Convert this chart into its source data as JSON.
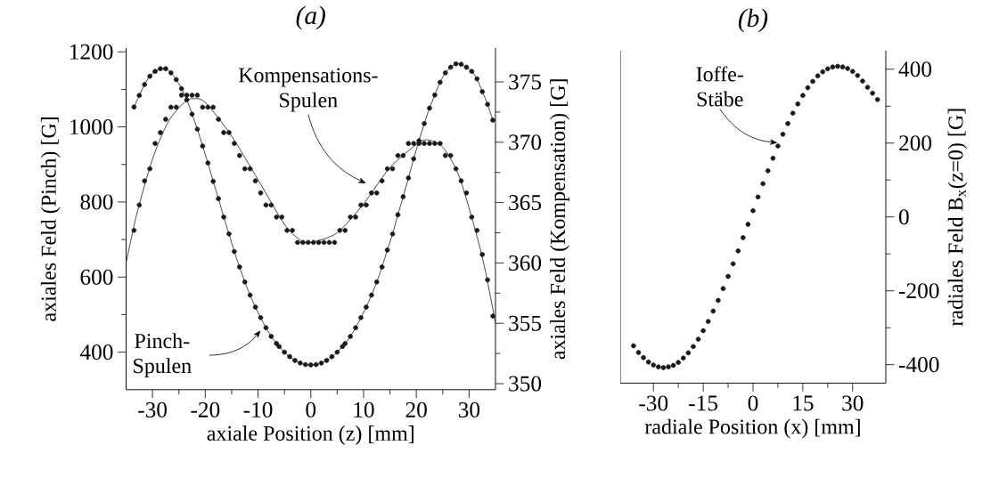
{
  "chart_data": [
    {
      "type": "line",
      "title": "(a)",
      "xlabel": "axiale Position (z) [mm]",
      "ylabel": "axiales Feld (Pinch) [G]",
      "y2label": "axiales Feld (Kompensation) [G]",
      "xlim": [
        -35,
        35
      ],
      "xticks": [
        -30,
        -20,
        -10,
        0,
        10,
        20,
        30
      ],
      "ylim": [
        300,
        1210
      ],
      "yticks": [
        400,
        600,
        800,
        1000,
        1200
      ],
      "y2lim": [
        349.5,
        377.8
      ],
      "y2ticks": [
        350,
        355,
        360,
        365,
        370,
        375
      ],
      "annotations": [
        "Kompensations-Spulen",
        {
          "text": "Pinch-Spulen",
          "x": -9.5,
          "y": 458
        }
      ],
      "series": [
        {
          "type": "line",
          "marker": "circle",
          "color": "#1a1a1a",
          "x": [
            -33.5,
            -32.5,
            -31.5,
            -30.5,
            -29.5,
            -28.5,
            -27.5,
            -26.5,
            -25.5,
            -24.5,
            -23.5,
            -22.5,
            -21.5,
            -20.5,
            -19.5,
            -18.5,
            -17.5,
            -16.5,
            -15.5,
            -14.5,
            -13.5,
            -12.5,
            -11.5,
            -10.5,
            -9.5,
            -8.5,
            -7.5,
            -6.5,
            -6,
            -5,
            -4,
            -3,
            -2,
            -1,
            0,
            1,
            2,
            3,
            4,
            5,
            6,
            6.5,
            7.5,
            8.5,
            9.5,
            10.5,
            11.5,
            12.5,
            13.5,
            14.5,
            15.5,
            16.5,
            17.5,
            18.5,
            19.5,
            20.5,
            21.5,
            22.5,
            23.5,
            24.5,
            25.5,
            26.5,
            27.5,
            28.5,
            29.5,
            30.5,
            31.5,
            32.5,
            33.5,
            34.5
          ],
          "values": [
            1053,
            1084,
            1113,
            1135,
            1148,
            1155,
            1155,
            1144,
            1126,
            1102,
            1072,
            1034,
            994,
            949,
            904,
            855,
            809,
            760,
            715,
            668,
            627,
            587,
            552,
            520,
            492,
            465,
            442,
            423,
            415,
            400,
            388,
            378,
            371,
            367,
            366,
            367,
            371,
            378,
            388,
            400,
            415,
            423,
            442,
            465,
            492,
            520,
            552,
            587,
            627,
            672,
            715,
            766,
            814,
            864,
            915,
            963,
            1009,
            1050,
            1085,
            1119,
            1144,
            1159,
            1168,
            1167,
            1159,
            1148,
            1128,
            1094,
            1060,
            1018
          ]
        },
        {
          "type": "scatter",
          "axis": "y2",
          "marker": "circle",
          "color": "#1a1a1a",
          "x": [
            -33.5,
            -32.5,
            -31.5,
            -30.5,
            -29.5,
            -28.5,
            -27.5,
            -26.5,
            -25.5,
            -24.5,
            -23.5,
            -22.5,
            -21.5,
            -20.5,
            -19.5,
            -18.5,
            -17.5,
            -16.5,
            -15.5,
            -14.5,
            -13.5,
            -12.5,
            -11.5,
            -10.5,
            -9.5,
            -8.5,
            -7.5,
            -6.5,
            -5.5,
            -4.5,
            -3.5,
            -2.5,
            -1.5,
            -0.5,
            0.5,
            1.5,
            2.5,
            3.5,
            4.5,
            5.5,
            6.5,
            7.5,
            8.5,
            9.5,
            10.5,
            11.5,
            12.5,
            13.5,
            14.5,
            15.5,
            16.5,
            17.5,
            18.5,
            19.5,
            20.5,
            21.5,
            22.5,
            23.5,
            24.5,
            25.5,
            26.5,
            27.5,
            28.5,
            29.5,
            30.5,
            31.5,
            32.5,
            33.5,
            34.5
          ],
          "values": [
            362.7,
            364.8,
            366.8,
            367.8,
            369.9,
            370.8,
            371.9,
            372.9,
            372.9,
            373.9,
            373.9,
            373.9,
            373.9,
            372.9,
            372.9,
            372.9,
            371.9,
            370.8,
            370.8,
            369.9,
            368.9,
            367.8,
            367.8,
            366.8,
            365.8,
            364.8,
            364.8,
            363.8,
            363.8,
            362.7,
            362.7,
            361.7,
            361.7,
            361.7,
            361.7,
            361.7,
            361.7,
            361.7,
            361.7,
            362.7,
            362.7,
            363.8,
            363.8,
            364.8,
            364.8,
            365.8,
            365.8,
            366.8,
            367.8,
            367.8,
            368.9,
            368.9,
            369.9,
            369.9,
            369.9,
            369.9,
            369.9,
            369.9,
            369.9,
            368.9,
            368.9,
            367.8,
            366.8,
            365.8,
            363.8,
            362.7,
            360.7,
            358.6,
            355.6
          ]
        },
        {
          "type": "line",
          "axis": "y2",
          "marker": "none",
          "color": "#1a1a1a",
          "x": [
            -35,
            -33,
            -30,
            -27,
            -24,
            -22.5,
            -20,
            -15,
            -10,
            -5,
            -2,
            0,
            5,
            10,
            15,
            20,
            22,
            25,
            28,
            31,
            33,
            35
          ],
          "values": [
            360.0,
            364.0,
            368.6,
            371.7,
            373.3,
            373.6,
            373.3,
            370.5,
            366.9,
            363.2,
            361.9,
            361.7,
            362.5,
            364.9,
            367.9,
            369.8,
            370.2,
            369.6,
            367.3,
            363.0,
            359.5,
            355.0
          ]
        }
      ]
    },
    {
      "type": "scatter",
      "title": "(b)",
      "xlabel": "radiale Position (x) [mm]",
      "ylabel": "radiales Feld B$_{x}$(z=0) [G]",
      "xlim": [
        -40,
        40
      ],
      "xticks": [
        -30,
        -15,
        0,
        15,
        30
      ],
      "ylim": [
        -450,
        450
      ],
      "yticks": [
        -400,
        -200,
        0,
        200,
        400
      ],
      "annotations": [
        {
          "text": "Ioffe-Stäbe",
          "x": 7.4,
          "y": 201
        }
      ],
      "series": [
        {
          "marker": "circle",
          "color": "#1a1a1a",
          "x": [
            -36,
            -34.5,
            -33,
            -31.5,
            -30,
            -28.5,
            -27,
            -25.5,
            -24,
            -22.5,
            -21,
            -19.5,
            -18,
            -16.5,
            -15,
            -13.5,
            -12,
            -10.5,
            -9,
            -7.5,
            -6,
            -4.5,
            -3,
            -1.5,
            0,
            1.5,
            3,
            4.5,
            6,
            7.5,
            9,
            10.5,
            12,
            13.5,
            15,
            16.5,
            18,
            19.5,
            21,
            22.5,
            24,
            25.5,
            27,
            28.5,
            30,
            31.5,
            33,
            34.5,
            36,
            37.5
          ],
          "values": [
            -349,
            -367,
            -381,
            -393,
            -401,
            -406,
            -408,
            -406,
            -402,
            -394,
            -382,
            -368,
            -351,
            -331,
            -308,
            -283,
            -255,
            -226,
            -194,
            -161,
            -127,
            -92,
            -56,
            -20,
            17,
            54,
            90,
            125,
            159,
            192,
            224,
            253,
            281,
            306,
            329,
            350,
            367,
            382,
            393,
            401,
            406,
            408,
            406,
            402,
            394,
            383,
            368,
            351,
            335,
            318
          ]
        }
      ]
    }
  ]
}
